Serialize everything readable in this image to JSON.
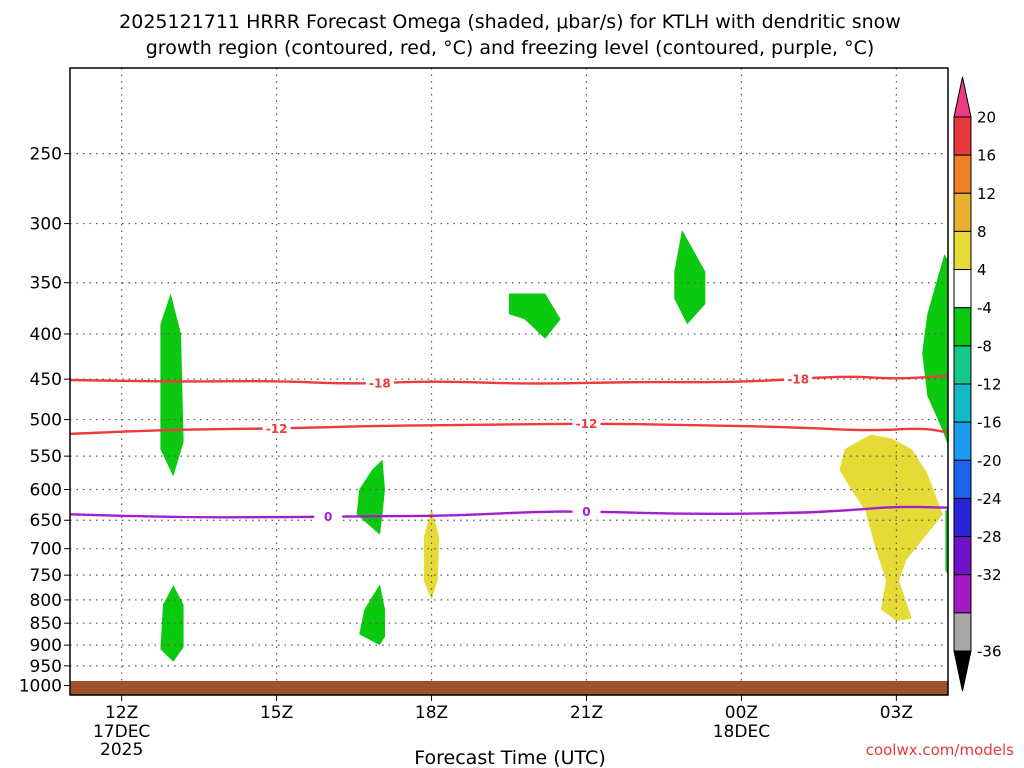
{
  "chart_data": {
    "type": "contour",
    "title_line1": "2025121711 HRRR Forecast Omega (shaded, μbar/s) for KTLH with dendritic snow",
    "title_line2": "growth region (contoured, red, °C) and freezing level (contoured, purple, °C)",
    "xlabel": "Forecast Time (UTC)",
    "credit": "coolwx.com/models",
    "x_ticks": [
      {
        "hour": 12,
        "label": "12Z",
        "sub1": "17DEC",
        "sub2": "2025"
      },
      {
        "hour": 15,
        "label": "15Z",
        "sub1": "",
        "sub2": ""
      },
      {
        "hour": 18,
        "label": "18Z",
        "sub1": "",
        "sub2": ""
      },
      {
        "hour": 21,
        "label": "21Z",
        "sub1": "",
        "sub2": ""
      },
      {
        "hour": 24,
        "label": "00Z",
        "sub1": "18DEC",
        "sub2": ""
      },
      {
        "hour": 27,
        "label": "03Z",
        "sub1": "",
        "sub2": ""
      }
    ],
    "xlim": [
      11,
      28
    ],
    "y_ticks": [
      250,
      300,
      350,
      400,
      450,
      500,
      550,
      600,
      650,
      700,
      750,
      800,
      850,
      900,
      950,
      1000
    ],
    "ylim": [
      200,
      1025
    ],
    "y_scale": "log",
    "y_reversed": true,
    "grid": true,
    "colorbar": {
      "labels": [
        "20",
        "16",
        "12",
        "8",
        "4",
        "-4",
        "-8",
        "-12",
        "-16",
        "-20",
        "-24",
        "-28",
        "-32",
        "-36"
      ],
      "colors": [
        "#ec3c82",
        "#e8383d",
        "#ef7f2a",
        "#e7b12e",
        "#e6da36",
        "#ffffff",
        "#0ac90f",
        "#16c78b",
        "#13b9c6",
        "#1c9cf0",
        "#1c64ef",
        "#2a24d8",
        "#6f13c7",
        "#a41ac4",
        "#a7a7a7",
        "#000000"
      ]
    },
    "contours": [
      {
        "name": "-18",
        "color": "#ee3b3b",
        "labels_at": [
          17,
          25.1
        ],
        "points": [
          [
            11,
            451
          ],
          [
            13,
            453
          ],
          [
            15,
            452
          ],
          [
            16.5,
            456
          ],
          [
            18,
            452
          ],
          [
            20,
            456
          ],
          [
            22,
            453
          ],
          [
            24,
            454
          ],
          [
            26,
            446
          ],
          [
            27,
            450
          ],
          [
            28,
            446
          ]
        ]
      },
      {
        "name": "-12",
        "color": "#ee3b3b",
        "labels_at": [
          15,
          21
        ],
        "points": [
          [
            11,
            519
          ],
          [
            13,
            513
          ],
          [
            15,
            512
          ],
          [
            17,
            508
          ],
          [
            19,
            507
          ],
          [
            21,
            505
          ],
          [
            23,
            507
          ],
          [
            25,
            510
          ],
          [
            26.5,
            515
          ],
          [
            27.5,
            511
          ],
          [
            28,
            517
          ]
        ]
      },
      {
        "name": "0",
        "color": "#a020d0",
        "labels_at": [
          16,
          21
        ],
        "points": [
          [
            11,
            640
          ],
          [
            13,
            645
          ],
          [
            15,
            645
          ],
          [
            17,
            643
          ],
          [
            18,
            643
          ],
          [
            19,
            640
          ],
          [
            20,
            636
          ],
          [
            21,
            635
          ],
          [
            23,
            640
          ],
          [
            25,
            638
          ],
          [
            26,
            634
          ],
          [
            27,
            627
          ],
          [
            28,
            629
          ]
        ]
      }
    ],
    "shaded": [
      {
        "value": "-4 to -8",
        "color": "#0ac90f",
        "points": [
          [
            12.95,
            360
          ],
          [
            13.15,
            400
          ],
          [
            13.2,
            530
          ],
          [
            13,
            580
          ],
          [
            12.75,
            540
          ],
          [
            12.75,
            390
          ]
        ]
      },
      {
        "value": "-4 to -8",
        "color": "#0ac90f",
        "points": [
          [
            13,
            770
          ],
          [
            13.2,
            810
          ],
          [
            13.2,
            905
          ],
          [
            13,
            940
          ],
          [
            12.75,
            910
          ],
          [
            12.8,
            810
          ]
        ]
      },
      {
        "value": "-4 to -8",
        "color": "#0ac90f",
        "points": [
          [
            17.05,
            555
          ],
          [
            17.1,
            600
          ],
          [
            17.05,
            640
          ],
          [
            17.0,
            675
          ],
          [
            16.55,
            640
          ],
          [
            16.6,
            600
          ],
          [
            16.85,
            570
          ]
        ]
      },
      {
        "value": "-4 to -8",
        "color": "#0ac90f",
        "points": [
          [
            17.0,
            768
          ],
          [
            17.1,
            820
          ],
          [
            17.1,
            880
          ],
          [
            17.0,
            900
          ],
          [
            16.6,
            875
          ],
          [
            16.7,
            820
          ]
        ]
      },
      {
        "value": "-4 to -8",
        "color": "#0ac90f",
        "points": [
          [
            19.5,
            360
          ],
          [
            20.2,
            360
          ],
          [
            20.5,
            385
          ],
          [
            20.2,
            405
          ],
          [
            19.8,
            385
          ],
          [
            19.5,
            380
          ]
        ]
      },
      {
        "value": "-4 to -8",
        "color": "#0ac90f",
        "points": [
          [
            22.85,
            305
          ],
          [
            23.3,
            340
          ],
          [
            23.3,
            370
          ],
          [
            22.95,
            390
          ],
          [
            22.7,
            365
          ],
          [
            22.7,
            340
          ]
        ]
      },
      {
        "value": "-4 to -8",
        "color": "#0ac90f",
        "points": [
          [
            27.93,
            325
          ],
          [
            28,
            330
          ],
          [
            28,
            535
          ],
          [
            27.9,
            515
          ],
          [
            27.6,
            470
          ],
          [
            27.5,
            420
          ],
          [
            27.6,
            380
          ]
        ]
      },
      {
        "value": "-4 to -8",
        "color": "#0ac90f",
        "points": [
          [
            27.95,
            635
          ],
          [
            28,
            630
          ],
          [
            28,
            750
          ],
          [
            27.95,
            740
          ]
        ]
      },
      {
        "value": "4 to 8",
        "color": "#e6da36",
        "points": [
          [
            18.0,
            630
          ],
          [
            18.15,
            680
          ],
          [
            18.12,
            760
          ],
          [
            18.0,
            800
          ],
          [
            17.85,
            760
          ],
          [
            17.85,
            680
          ]
        ]
      },
      {
        "value": "4 to 8",
        "color": "#e6da36",
        "points": [
          [
            26.9,
            525
          ],
          [
            27.3,
            540
          ],
          [
            27.6,
            575
          ],
          [
            27.9,
            640
          ],
          [
            27.2,
            720
          ],
          [
            27.05,
            760
          ],
          [
            27.3,
            840
          ],
          [
            27.0,
            845
          ],
          [
            26.7,
            820
          ],
          [
            26.8,
            760
          ],
          [
            26.6,
            700
          ],
          [
            26.4,
            635
          ],
          [
            26.05,
            590
          ],
          [
            25.9,
            570
          ],
          [
            26.0,
            540
          ],
          [
            26.5,
            520
          ]
        ]
      }
    ]
  }
}
